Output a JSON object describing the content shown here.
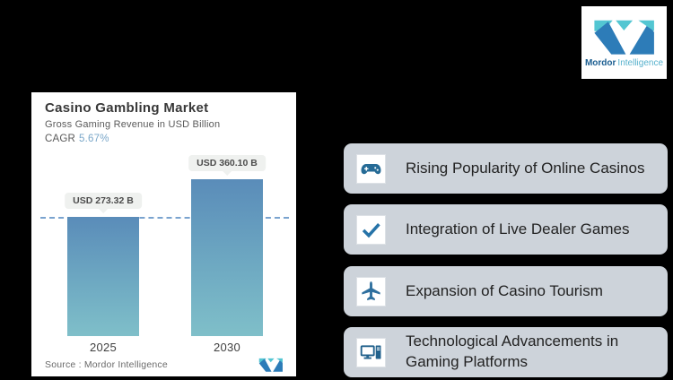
{
  "brand": {
    "name_bold": "Mordor",
    "name_light": "Intelligence"
  },
  "chart": {
    "title": "Casino Gambling Market",
    "subtitle": "Gross Gaming Revenue in USD Billion",
    "cagr_label": "CAGR",
    "cagr_value": "5.67%",
    "source": "Source :  Mordor Intelligence"
  },
  "chart_data": {
    "type": "bar",
    "title": "Casino Gambling Market",
    "subtitle": "Gross Gaming Revenue in USD Billion",
    "unit": "USD Billion",
    "cagr": "5.67%",
    "categories": [
      "2025",
      "2030"
    ],
    "values": [
      273.32,
      360.1
    ],
    "value_labels": [
      "USD 273.32 B",
      "USD 360.10 B"
    ],
    "ylim": [
      0,
      360.1
    ],
    "dashed_reference_value": 273.32,
    "bar_gradient_top": "#5a8cb9",
    "bar_gradient_bottom": "#7fbfc9",
    "dashed_line_color": "#7aa3cf"
  },
  "highlights": [
    {
      "icon": "gamepad-icon",
      "label": "Rising Popularity of Online Casinos"
    },
    {
      "icon": "checkmark-icon",
      "label": "Integration of Live Dealer Games"
    },
    {
      "icon": "airplane-icon",
      "label": "Expansion of Casino Tourism"
    },
    {
      "icon": "desktop-computer-icon",
      "label": "Technological Advancements in Gaming Platforms"
    }
  ],
  "colors": {
    "background": "#000000",
    "card_bg": "#ffffff",
    "highlight_bg": "#cdd3da",
    "icon_blue": "#266b96",
    "logo_blue": "#2d7cb8",
    "logo_teal": "#53c6d2",
    "cagr_value_color": "#7aa7c9"
  }
}
